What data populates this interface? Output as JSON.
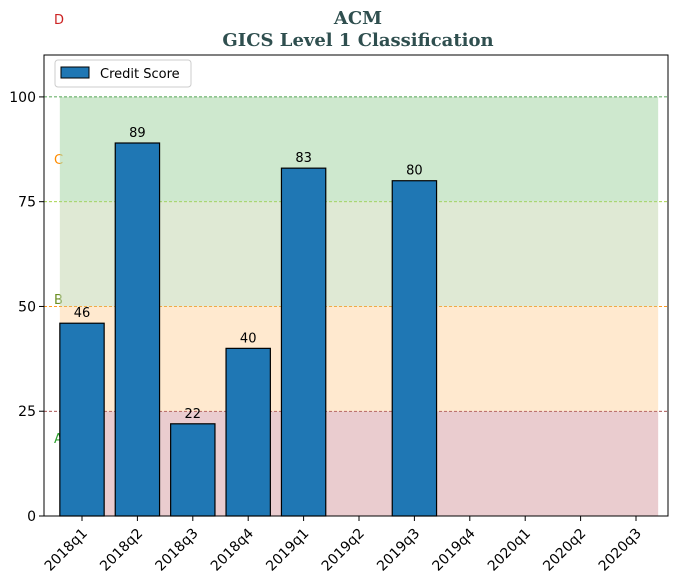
{
  "chart_data": {
    "type": "bar",
    "title": "ACM",
    "subtitle": "GICS Level 1 Classification",
    "categories": [
      "2018q1",
      "2018q2",
      "2018q3",
      "2018q4",
      "2019q1",
      "2019q2",
      "2019q3",
      "2019q4",
      "2020q1",
      "2020q2",
      "2020q3"
    ],
    "series": [
      {
        "name": "Credit Score",
        "values": [
          46,
          89,
          22,
          40,
          83,
          null,
          80,
          null,
          null,
          null,
          null
        ],
        "color": "#1f77b4"
      }
    ],
    "ylim": [
      0,
      110
    ],
    "yticks": [
      0,
      25,
      50,
      75,
      100
    ],
    "legend_position": "top-left",
    "bands": [
      {
        "label": "A",
        "from": 0,
        "to": 25,
        "fill": "#d9a3a8",
        "line": "#8b1a1a",
        "label_color": "#2ca02c"
      },
      {
        "label": "B",
        "from": 25,
        "to": 50,
        "fill": "#ffd7a8",
        "line": "#ff8c00",
        "label_color": "#6b8e23"
      },
      {
        "label": "C",
        "from": 50,
        "to": 75,
        "fill": "#c5d7b0",
        "line": "#9acd32",
        "label_color": "#ff8c00"
      },
      {
        "label": "D",
        "from": 75,
        "to": 100,
        "fill": "#a6d6a6",
        "line": "#228b22",
        "label_color": "#cc2222"
      }
    ]
  }
}
